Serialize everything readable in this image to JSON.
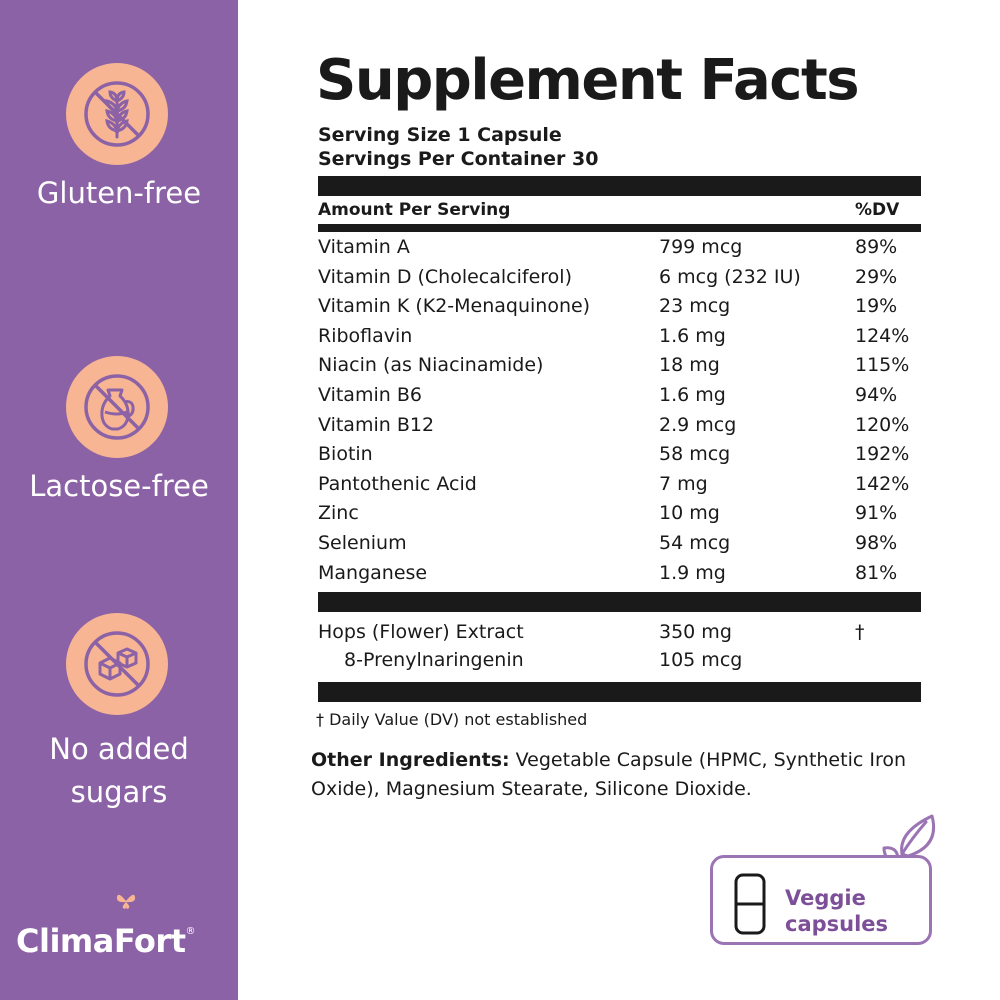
{
  "sidebar": {
    "badges": [
      {
        "icon": "wheat-crossed-icon",
        "label": "Gluten-free"
      },
      {
        "icon": "milk-jug-crossed-icon",
        "label": "Lactose-free"
      },
      {
        "icon": "sugar-cubes-crossed-icon",
        "label_line1": "No added",
        "label_line2": "sugars"
      }
    ],
    "brand": {
      "name": "ClimaFort",
      "registered": "®"
    }
  },
  "colors": {
    "sidebar": "#8c62a6",
    "badge": "#f7b594",
    "icon_stroke": "#8c62a6",
    "accent": "#7d4f98"
  },
  "facts": {
    "title": "Supplement Facts",
    "serving_size": "Serving Size 1 Capsule",
    "servings_per_container": "Servings Per Container 30",
    "header_amount": "Amount Per Serving",
    "header_dv": "%DV",
    "nutrients": [
      {
        "name": "Vitamin A",
        "amount": "799 mcg",
        "dv": "89%"
      },
      {
        "name": "Vitamin D (Cholecalciferol)",
        "amount": "6 mcg (232 IU)",
        "dv": "29%"
      },
      {
        "name": "Vitamin K (K2-Menaquinone)",
        "amount": "23 mcg",
        "dv": "19%"
      },
      {
        "name": "Riboflavin",
        "amount": "1.6 mg",
        "dv": "124%"
      },
      {
        "name": "Niacin (as Niacinamide)",
        "amount": "18 mg",
        "dv": "115%"
      },
      {
        "name": "Vitamin B6",
        "amount": "1.6 mg",
        "dv": "94%"
      },
      {
        "name": "Vitamin B12",
        "amount": "2.9 mcg",
        "dv": "120%"
      },
      {
        "name": "Biotin",
        "amount": "58 mcg",
        "dv": "192%"
      },
      {
        "name": "Pantothenic Acid",
        "amount": "7 mg",
        "dv": "142%"
      },
      {
        "name": "Zinc",
        "amount": "10 mg",
        "dv": "91%"
      },
      {
        "name": "Selenium",
        "amount": "54 mcg",
        "dv": "98%"
      },
      {
        "name": "Manganese",
        "amount": "1.9 mg",
        "dv": "81%"
      }
    ],
    "extract": {
      "name": "Hops (Flower) Extract",
      "amount": "350 mg",
      "dv": "†"
    },
    "sub_extract": {
      "name": "8-Prenylnaringenin",
      "amount": "105 mcg"
    },
    "footnote": "† Daily Value (DV) not established",
    "other_label": "Other Ingredients:",
    "other_text": "Vegetable Capsule (HPMC, Synthetic Iron Oxide), Magnesium Stearate, Silicone Dioxide."
  },
  "veggie": {
    "icon": "capsule-icon",
    "line1": "Veggie",
    "line2": "capsules"
  }
}
